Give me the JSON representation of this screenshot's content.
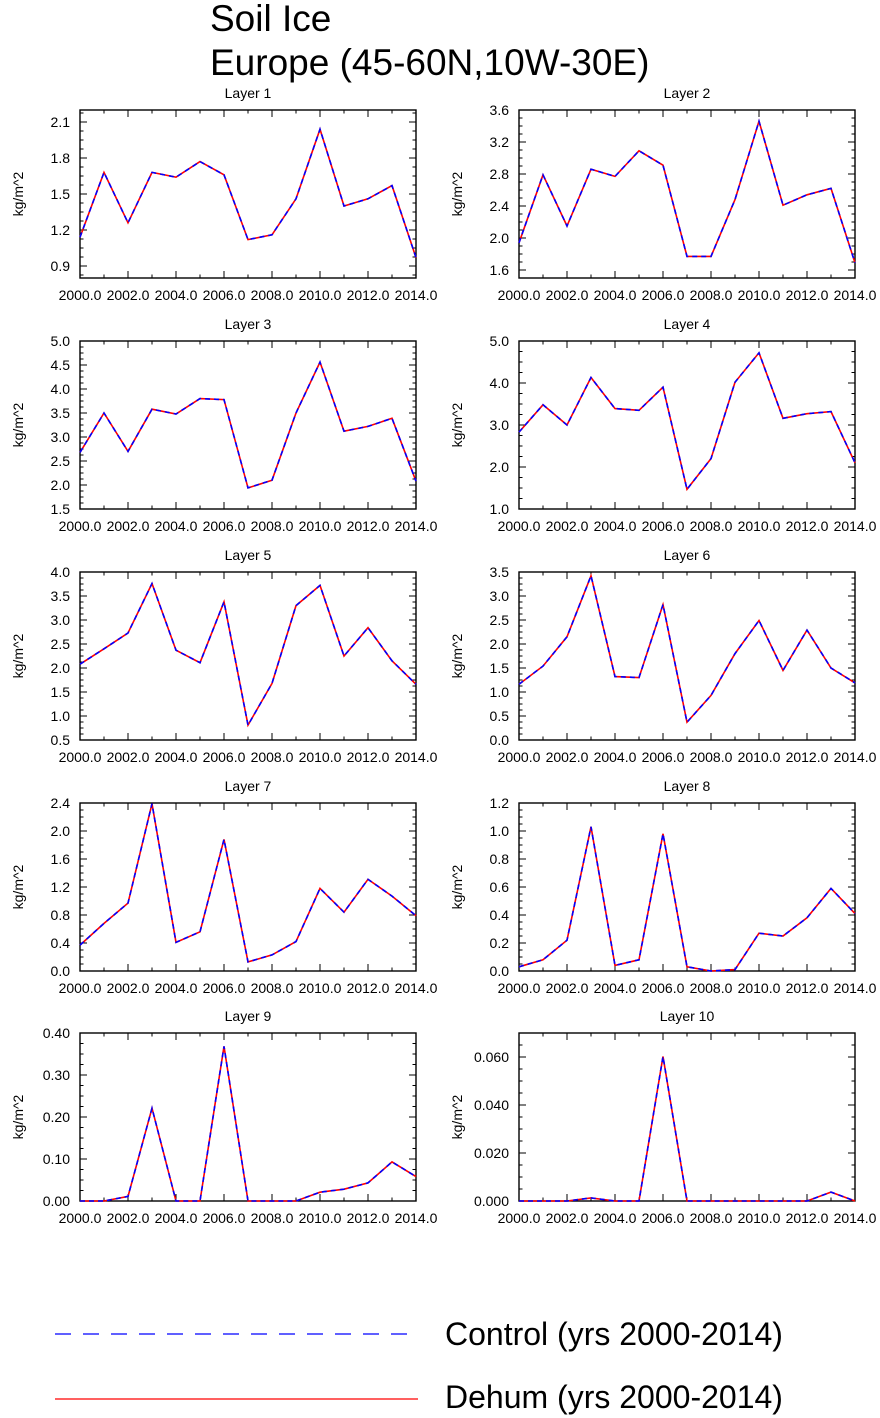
{
  "figure": {
    "title_line1": "Soil Ice",
    "title_line2": "Europe (45-60N,10W-30E)"
  },
  "legend": {
    "items": [
      {
        "label": "Control (yrs 2000-2014)",
        "color": "#0000ff",
        "dash": "dashed"
      },
      {
        "label": "Dehum (yrs 2000-2014)",
        "color": "#ff0000",
        "dash": "solid"
      }
    ]
  },
  "chart_data": [
    {
      "type": "line",
      "title": "Layer 1",
      "ylabel": "kg/m^2",
      "x": [
        2000,
        2001,
        2002,
        2003,
        2004,
        2005,
        2006,
        2007,
        2008,
        2009,
        2010,
        2011,
        2012,
        2013,
        2014
      ],
      "xlim": [
        2000,
        2014
      ],
      "xticks": [
        2000,
        2002,
        2004,
        2006,
        2008,
        2010,
        2012,
        2014
      ],
      "xtick_labels": [
        "2000.0",
        "2002.0",
        "2004.0",
        "2006.0",
        "2008.0",
        "2010.0",
        "2012.0",
        "2014.0"
      ],
      "ylim": [
        0.8,
        2.2
      ],
      "yticks": [
        0.9,
        1.2,
        1.5,
        1.8,
        2.1
      ],
      "ytick_labels": [
        "0.9",
        "1.2",
        "1.5",
        "1.8",
        "2.1"
      ],
      "series": [
        {
          "name": "Control (yrs 2000-2014)",
          "values": [
            1.14,
            1.68,
            1.26,
            1.68,
            1.64,
            1.77,
            1.66,
            1.12,
            1.16,
            1.46,
            2.04,
            1.4,
            1.46,
            1.57,
            0.97
          ]
        },
        {
          "name": "Dehum (yrs 2000-2014)",
          "values": [
            1.14,
            1.68,
            1.26,
            1.68,
            1.64,
            1.77,
            1.66,
            1.12,
            1.16,
            1.46,
            2.04,
            1.4,
            1.46,
            1.57,
            0.97
          ]
        }
      ]
    },
    {
      "type": "line",
      "title": "Layer 2",
      "ylabel": "kg/m^2",
      "x": [
        2000,
        2001,
        2002,
        2003,
        2004,
        2005,
        2006,
        2007,
        2008,
        2009,
        2010,
        2011,
        2012,
        2013,
        2014
      ],
      "xlim": [
        2000,
        2014
      ],
      "xticks": [
        2000,
        2002,
        2004,
        2006,
        2008,
        2010,
        2012,
        2014
      ],
      "xtick_labels": [
        "2000.0",
        "2002.0",
        "2004.0",
        "2006.0",
        "2008.0",
        "2010.0",
        "2012.0",
        "2014.0"
      ],
      "ylim": [
        1.5,
        3.6
      ],
      "yticks": [
        1.6,
        2.0,
        2.4,
        2.8,
        3.2,
        3.6
      ],
      "ytick_labels": [
        "1.6",
        "2.0",
        "2.4",
        "2.8",
        "3.2",
        "3.6"
      ],
      "series": [
        {
          "name": "Control (yrs 2000-2014)",
          "values": [
            1.94,
            2.79,
            2.15,
            2.86,
            2.77,
            3.09,
            2.91,
            1.77,
            1.77,
            2.48,
            3.46,
            2.41,
            2.54,
            2.62,
            1.69
          ]
        },
        {
          "name": "Dehum (yrs 2000-2014)",
          "values": [
            1.94,
            2.79,
            2.15,
            2.86,
            2.77,
            3.09,
            2.91,
            1.77,
            1.77,
            2.48,
            3.46,
            2.41,
            2.54,
            2.62,
            1.69
          ]
        }
      ]
    },
    {
      "type": "line",
      "title": "Layer 3",
      "ylabel": "kg/m^2",
      "x": [
        2000,
        2001,
        2002,
        2003,
        2004,
        2005,
        2006,
        2007,
        2008,
        2009,
        2010,
        2011,
        2012,
        2013,
        2014
      ],
      "xlim": [
        2000,
        2014
      ],
      "xticks": [
        2000,
        2002,
        2004,
        2006,
        2008,
        2010,
        2012,
        2014
      ],
      "xtick_labels": [
        "2000.0",
        "2002.0",
        "2004.0",
        "2006.0",
        "2008.0",
        "2010.0",
        "2012.0",
        "2014.0"
      ],
      "ylim": [
        1.5,
        5.0
      ],
      "yticks": [
        1.5,
        2.0,
        2.5,
        3.0,
        3.5,
        4.0,
        4.5,
        5.0
      ],
      "ytick_labels": [
        "1.5",
        "2.0",
        "2.5",
        "3.0",
        "3.5",
        "4.0",
        "4.5",
        "5.0"
      ],
      "series": [
        {
          "name": "Control (yrs 2000-2014)",
          "values": [
            2.68,
            3.5,
            2.7,
            3.58,
            3.48,
            3.8,
            3.78,
            1.94,
            2.1,
            3.5,
            4.56,
            3.12,
            3.22,
            3.39,
            2.08
          ]
        },
        {
          "name": "Dehum (yrs 2000-2014)",
          "values": [
            2.68,
            3.5,
            2.7,
            3.58,
            3.48,
            3.8,
            3.78,
            1.94,
            2.1,
            3.5,
            4.56,
            3.12,
            3.22,
            3.39,
            2.08
          ]
        }
      ]
    },
    {
      "type": "line",
      "title": "Layer 4",
      "ylabel": "kg/m^2",
      "x": [
        2000,
        2001,
        2002,
        2003,
        2004,
        2005,
        2006,
        2007,
        2008,
        2009,
        2010,
        2011,
        2012,
        2013,
        2014
      ],
      "xlim": [
        2000,
        2014
      ],
      "xticks": [
        2000,
        2002,
        2004,
        2006,
        2008,
        2010,
        2012,
        2014
      ],
      "xtick_labels": [
        "2000.0",
        "2002.0",
        "2004.0",
        "2006.0",
        "2008.0",
        "2010.0",
        "2012.0",
        "2014.0"
      ],
      "ylim": [
        1.0,
        5.0
      ],
      "yticks": [
        1.0,
        2.0,
        3.0,
        4.0,
        5.0
      ],
      "ytick_labels": [
        "1.0",
        "2.0",
        "3.0",
        "4.0",
        "5.0"
      ],
      "series": [
        {
          "name": "Control (yrs 2000-2014)",
          "values": [
            2.83,
            3.48,
            3.0,
            4.13,
            3.39,
            3.35,
            3.9,
            1.47,
            2.2,
            4.02,
            4.72,
            3.16,
            3.27,
            3.32,
            2.1
          ]
        },
        {
          "name": "Dehum (yrs 2000-2014)",
          "values": [
            2.83,
            3.48,
            3.0,
            4.13,
            3.39,
            3.35,
            3.9,
            1.47,
            2.2,
            4.02,
            4.72,
            3.16,
            3.27,
            3.32,
            2.1
          ]
        }
      ]
    },
    {
      "type": "line",
      "title": "Layer 5",
      "ylabel": "kg/m^2",
      "x": [
        2000,
        2001,
        2002,
        2003,
        2004,
        2005,
        2006,
        2007,
        2008,
        2009,
        2010,
        2011,
        2012,
        2013,
        2014
      ],
      "xlim": [
        2000,
        2014
      ],
      "xticks": [
        2000,
        2002,
        2004,
        2006,
        2008,
        2010,
        2012,
        2014
      ],
      "xtick_labels": [
        "2000.0",
        "2002.0",
        "2004.0",
        "2006.0",
        "2008.0",
        "2010.0",
        "2012.0",
        "2014.0"
      ],
      "ylim": [
        0.5,
        4.0
      ],
      "yticks": [
        0.5,
        1.0,
        1.5,
        2.0,
        2.5,
        3.0,
        3.5,
        4.0
      ],
      "ytick_labels": [
        "0.5",
        "1.0",
        "1.5",
        "2.0",
        "2.5",
        "3.0",
        "3.5",
        "4.0"
      ],
      "series": [
        {
          "name": "Control (yrs 2000-2014)",
          "values": [
            2.08,
            2.4,
            2.73,
            3.76,
            2.37,
            2.11,
            3.38,
            0.81,
            1.68,
            3.3,
            3.72,
            2.25,
            2.84,
            2.15,
            1.66
          ]
        },
        {
          "name": "Dehum (yrs 2000-2014)",
          "values": [
            2.08,
            2.4,
            2.73,
            3.76,
            2.37,
            2.11,
            3.38,
            0.81,
            1.68,
            3.3,
            3.72,
            2.25,
            2.84,
            2.15,
            1.66
          ]
        }
      ]
    },
    {
      "type": "line",
      "title": "Layer 6",
      "ylabel": "kg/m^2",
      "x": [
        2000,
        2001,
        2002,
        2003,
        2004,
        2005,
        2006,
        2007,
        2008,
        2009,
        2010,
        2011,
        2012,
        2013,
        2014
      ],
      "xlim": [
        2000,
        2014
      ],
      "xticks": [
        2000,
        2002,
        2004,
        2006,
        2008,
        2010,
        2012,
        2014
      ],
      "xtick_labels": [
        "2000.0",
        "2002.0",
        "2004.0",
        "2006.0",
        "2008.0",
        "2010.0",
        "2012.0",
        "2014.0"
      ],
      "ylim": [
        0.0,
        3.5
      ],
      "yticks": [
        0.0,
        0.5,
        1.0,
        1.5,
        2.0,
        2.5,
        3.0,
        3.5
      ],
      "ytick_labels": [
        "0.0",
        "0.5",
        "1.0",
        "1.5",
        "2.0",
        "2.5",
        "3.0",
        "3.5"
      ],
      "series": [
        {
          "name": "Control (yrs 2000-2014)",
          "values": [
            1.16,
            1.54,
            2.15,
            3.42,
            1.32,
            1.3,
            2.82,
            0.37,
            0.93,
            1.8,
            2.49,
            1.45,
            2.29,
            1.5,
            1.19
          ]
        },
        {
          "name": "Dehum (yrs 2000-2014)",
          "values": [
            1.16,
            1.54,
            2.15,
            3.42,
            1.32,
            1.3,
            2.82,
            0.37,
            0.93,
            1.8,
            2.49,
            1.45,
            2.29,
            1.5,
            1.19
          ]
        }
      ]
    },
    {
      "type": "line",
      "title": "Layer 7",
      "ylabel": "kg/m^2",
      "x": [
        2000,
        2001,
        2002,
        2003,
        2004,
        2005,
        2006,
        2007,
        2008,
        2009,
        2010,
        2011,
        2012,
        2013,
        2014
      ],
      "xlim": [
        2000,
        2014
      ],
      "xticks": [
        2000,
        2002,
        2004,
        2006,
        2008,
        2010,
        2012,
        2014
      ],
      "xtick_labels": [
        "2000.0",
        "2002.0",
        "2004.0",
        "2006.0",
        "2008.0",
        "2010.0",
        "2012.0",
        "2014.0"
      ],
      "ylim": [
        0.0,
        2.4
      ],
      "yticks": [
        0.0,
        0.4,
        0.8,
        1.2,
        1.6,
        2.0,
        2.4
      ],
      "ytick_labels": [
        "0.0",
        "0.4",
        "0.8",
        "1.2",
        "1.6",
        "2.0",
        "2.4"
      ],
      "series": [
        {
          "name": "Control (yrs 2000-2014)",
          "values": [
            0.37,
            0.68,
            0.97,
            2.39,
            0.41,
            0.56,
            1.88,
            0.13,
            0.23,
            0.42,
            1.18,
            0.84,
            1.31,
            1.07,
            0.79
          ]
        },
        {
          "name": "Dehum (yrs 2000-2014)",
          "values": [
            0.37,
            0.68,
            0.97,
            2.39,
            0.41,
            0.56,
            1.88,
            0.13,
            0.23,
            0.42,
            1.18,
            0.84,
            1.31,
            1.07,
            0.79
          ]
        }
      ]
    },
    {
      "type": "line",
      "title": "Layer 8",
      "ylabel": "kg/m^2",
      "x": [
        2000,
        2001,
        2002,
        2003,
        2004,
        2005,
        2006,
        2007,
        2008,
        2009,
        2010,
        2011,
        2012,
        2013,
        2014
      ],
      "xlim": [
        2000,
        2014
      ],
      "xticks": [
        2000,
        2002,
        2004,
        2006,
        2008,
        2010,
        2012,
        2014
      ],
      "xtick_labels": [
        "2000.0",
        "2002.0",
        "2004.0",
        "2006.0",
        "2008.0",
        "2010.0",
        "2012.0",
        "2014.0"
      ],
      "ylim": [
        0.0,
        1.2
      ],
      "yticks": [
        0.0,
        0.2,
        0.4,
        0.6,
        0.8,
        1.0,
        1.2
      ],
      "ytick_labels": [
        "0.0",
        "0.2",
        "0.4",
        "0.6",
        "0.8",
        "1.0",
        "1.2"
      ],
      "series": [
        {
          "name": "Control (yrs 2000-2014)",
          "values": [
            0.03,
            0.08,
            0.22,
            1.03,
            0.04,
            0.08,
            0.98,
            0.03,
            0.0,
            0.01,
            0.27,
            0.25,
            0.38,
            0.59,
            0.41
          ]
        },
        {
          "name": "Dehum (yrs 2000-2014)",
          "values": [
            0.03,
            0.08,
            0.22,
            1.03,
            0.04,
            0.08,
            0.98,
            0.03,
            0.0,
            0.01,
            0.27,
            0.25,
            0.38,
            0.59,
            0.41
          ]
        }
      ]
    },
    {
      "type": "line",
      "title": "Layer 9",
      "ylabel": "kg/m^2",
      "x": [
        2000,
        2001,
        2002,
        2003,
        2004,
        2005,
        2006,
        2007,
        2008,
        2009,
        2010,
        2011,
        2012,
        2013,
        2014
      ],
      "xlim": [
        2000,
        2014
      ],
      "xticks": [
        2000,
        2002,
        2004,
        2006,
        2008,
        2010,
        2012,
        2014
      ],
      "xtick_labels": [
        "2000.0",
        "2002.0",
        "2004.0",
        "2006.0",
        "2008.0",
        "2010.0",
        "2012.0",
        "2014.0"
      ],
      "ylim": [
        0.0,
        0.4
      ],
      "yticks": [
        0.0,
        0.1,
        0.2,
        0.3,
        0.4
      ],
      "ytick_labels": [
        "0.00",
        "0.10",
        "0.20",
        "0.30",
        "0.40"
      ],
      "series": [
        {
          "name": "Control (yrs 2000-2014)",
          "values": [
            0.0,
            0.0,
            0.011,
            0.221,
            0.0,
            0.0,
            0.368,
            0.0,
            0.0,
            0.0,
            0.021,
            0.028,
            0.043,
            0.093,
            0.058
          ]
        },
        {
          "name": "Dehum (yrs 2000-2014)",
          "values": [
            0.0,
            0.0,
            0.011,
            0.221,
            0.0,
            0.0,
            0.368,
            0.0,
            0.0,
            0.0,
            0.021,
            0.028,
            0.043,
            0.093,
            0.058
          ]
        }
      ]
    },
    {
      "type": "line",
      "title": "Layer 10",
      "ylabel": "kg/m^2",
      "x": [
        2000,
        2001,
        2002,
        2003,
        2004,
        2005,
        2006,
        2007,
        2008,
        2009,
        2010,
        2011,
        2012,
        2013,
        2014
      ],
      "xlim": [
        2000,
        2014
      ],
      "xticks": [
        2000,
        2002,
        2004,
        2006,
        2008,
        2010,
        2012,
        2014
      ],
      "xtick_labels": [
        "2000.0",
        "2002.0",
        "2004.0",
        "2006.0",
        "2008.0",
        "2010.0",
        "2012.0",
        "2014.0"
      ],
      "ylim": [
        0.0,
        0.07
      ],
      "yticks": [
        0.0,
        0.02,
        0.04,
        0.06
      ],
      "ytick_labels": [
        "0.000",
        "0.020",
        "0.040",
        "0.060"
      ],
      "series": [
        {
          "name": "Control (yrs 2000-2014)",
          "values": [
            0.0,
            0.0,
            0.0,
            0.0013,
            0.0,
            0.0,
            0.0602,
            0.0,
            0.0,
            0.0,
            0.0,
            0.0,
            0.0,
            0.0037,
            0.0
          ]
        },
        {
          "name": "Dehum (yrs 2000-2014)",
          "values": [
            0.0,
            0.0,
            0.0,
            0.0013,
            0.0,
            0.0,
            0.0602,
            0.0,
            0.0,
            0.0,
            0.0,
            0.0,
            0.0,
            0.0037,
            0.0
          ]
        }
      ]
    }
  ]
}
